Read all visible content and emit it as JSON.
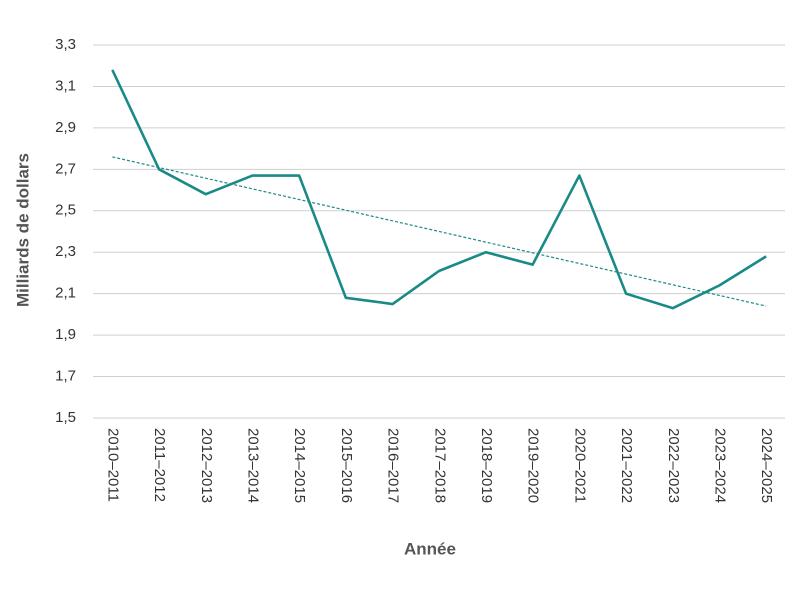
{
  "chart_data": {
    "type": "line",
    "x_label": "Année",
    "y_label": "Milliards de dollars",
    "categories": [
      "2010–2011",
      "2011–2012",
      "2012–2013",
      "2013–2014",
      "2014–2015",
      "2015–2016",
      "2016–2017",
      "2017–2018",
      "2018–2019",
      "2019–2020",
      "2020–2021",
      "2021–2022",
      "2022–2023",
      "2023–2024",
      "2024–2025"
    ],
    "series": [
      {
        "color": "#1a8a87",
        "values": [
          3.18,
          2.7,
          2.58,
          2.67,
          2.67,
          2.08,
          2.05,
          2.21,
          2.3,
          2.24,
          2.67,
          2.1,
          2.03,
          2.14,
          2.28
        ]
      }
    ],
    "trend": {
      "color": "#1a8a87",
      "dashed": true,
      "x_index": [
        0,
        14
      ],
      "values": [
        2.76,
        2.04
      ]
    },
    "ylim": [
      1.5,
      3.3
    ],
    "yticks": [
      {
        "value": 1.5,
        "label": "1,5"
      },
      {
        "value": 1.7,
        "label": "1,7"
      },
      {
        "value": 1.9,
        "label": "1,9"
      },
      {
        "value": 2.1,
        "label": "2,1"
      },
      {
        "value": 2.3,
        "label": "2,3"
      },
      {
        "value": 2.5,
        "label": "2,5"
      },
      {
        "value": 2.7,
        "label": "2,7"
      },
      {
        "value": 2.9,
        "label": "2,9"
      },
      {
        "value": 3.1,
        "label": "3,1"
      },
      {
        "value": 3.3,
        "label": "3,3"
      }
    ],
    "grid": true
  }
}
